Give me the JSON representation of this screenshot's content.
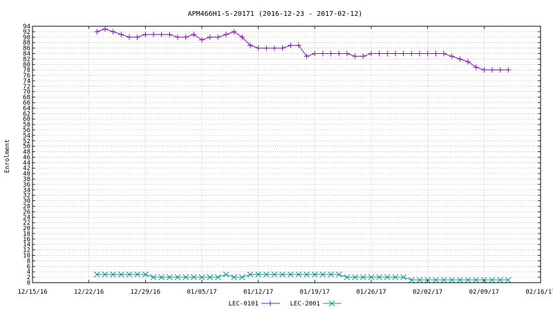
{
  "chart_data": {
    "type": "line",
    "title": "APM466H1-S-20171 (2016-12-23 - 2017-02-12)",
    "xlabel": "",
    "ylabel": "Enrolment",
    "ylim": [
      0,
      94
    ],
    "yticks_step": 2,
    "x_tick_labels": [
      "12/15/16",
      "12/22/16",
      "12/29/16",
      "01/05/17",
      "01/12/17",
      "01/19/17",
      "01/26/17",
      "02/02/17",
      "02/09/17",
      "02/16/17"
    ],
    "x_start": "2016-12-15",
    "x_end": "2017-02-16",
    "x_tick_every_days": 7,
    "grid": true,
    "legend_position": "bottom-center",
    "series": [
      {
        "name": "LEC-0101",
        "color": "#9400d3",
        "marker": "+",
        "points": [
          [
            "2016-12-23",
            92
          ],
          [
            "2016-12-24",
            93
          ],
          [
            "2016-12-25",
            92
          ],
          [
            "2016-12-26",
            91
          ],
          [
            "2016-12-27",
            90
          ],
          [
            "2016-12-28",
            90
          ],
          [
            "2016-12-29",
            91
          ],
          [
            "2016-12-30",
            91
          ],
          [
            "2016-12-31",
            91
          ],
          [
            "2017-01-01",
            91
          ],
          [
            "2017-01-02",
            90
          ],
          [
            "2017-01-03",
            90
          ],
          [
            "2017-01-04",
            91
          ],
          [
            "2017-01-05",
            89
          ],
          [
            "2017-01-06",
            90
          ],
          [
            "2017-01-07",
            90
          ],
          [
            "2017-01-08",
            91
          ],
          [
            "2017-01-09",
            92
          ],
          [
            "2017-01-10",
            90
          ],
          [
            "2017-01-11",
            87
          ],
          [
            "2017-01-12",
            86
          ],
          [
            "2017-01-13",
            86
          ],
          [
            "2017-01-14",
            86
          ],
          [
            "2017-01-15",
            86
          ],
          [
            "2017-01-16",
            87
          ],
          [
            "2017-01-17",
            87
          ],
          [
            "2017-01-18",
            83
          ],
          [
            "2017-01-19",
            84
          ],
          [
            "2017-01-20",
            84
          ],
          [
            "2017-01-21",
            84
          ],
          [
            "2017-01-22",
            84
          ],
          [
            "2017-01-23",
            84
          ],
          [
            "2017-01-24",
            83
          ],
          [
            "2017-01-25",
            83
          ],
          [
            "2017-01-26",
            84
          ],
          [
            "2017-01-27",
            84
          ],
          [
            "2017-01-28",
            84
          ],
          [
            "2017-01-29",
            84
          ],
          [
            "2017-01-30",
            84
          ],
          [
            "2017-01-31",
            84
          ],
          [
            "2017-02-01",
            84
          ],
          [
            "2017-02-02",
            84
          ],
          [
            "2017-02-03",
            84
          ],
          [
            "2017-02-04",
            84
          ],
          [
            "2017-02-05",
            83
          ],
          [
            "2017-02-06",
            82
          ],
          [
            "2017-02-07",
            81
          ],
          [
            "2017-02-08",
            79
          ],
          [
            "2017-02-09",
            78
          ],
          [
            "2017-02-10",
            78
          ],
          [
            "2017-02-11",
            78
          ],
          [
            "2017-02-12",
            78
          ]
        ]
      },
      {
        "name": "LEC-2001",
        "color": "#009b8c",
        "marker": "x",
        "points": [
          [
            "2016-12-23",
            3
          ],
          [
            "2016-12-24",
            3
          ],
          [
            "2016-12-25",
            3
          ],
          [
            "2016-12-26",
            3
          ],
          [
            "2016-12-27",
            3
          ],
          [
            "2016-12-28",
            3
          ],
          [
            "2016-12-29",
            3
          ],
          [
            "2016-12-30",
            2
          ],
          [
            "2016-12-31",
            2
          ],
          [
            "2017-01-01",
            2
          ],
          [
            "2017-01-02",
            2
          ],
          [
            "2017-01-03",
            2
          ],
          [
            "2017-01-04",
            2
          ],
          [
            "2017-01-05",
            2
          ],
          [
            "2017-01-06",
            2
          ],
          [
            "2017-01-07",
            2
          ],
          [
            "2017-01-08",
            3
          ],
          [
            "2017-01-09",
            2
          ],
          [
            "2017-01-10",
            2
          ],
          [
            "2017-01-11",
            3
          ],
          [
            "2017-01-12",
            3
          ],
          [
            "2017-01-13",
            3
          ],
          [
            "2017-01-14",
            3
          ],
          [
            "2017-01-15",
            3
          ],
          [
            "2017-01-16",
            3
          ],
          [
            "2017-01-17",
            3
          ],
          [
            "2017-01-18",
            3
          ],
          [
            "2017-01-19",
            3
          ],
          [
            "2017-01-20",
            3
          ],
          [
            "2017-01-21",
            3
          ],
          [
            "2017-01-22",
            3
          ],
          [
            "2017-01-23",
            2
          ],
          [
            "2017-01-24",
            2
          ],
          [
            "2017-01-25",
            2
          ],
          [
            "2017-01-26",
            2
          ],
          [
            "2017-01-27",
            2
          ],
          [
            "2017-01-28",
            2
          ],
          [
            "2017-01-29",
            2
          ],
          [
            "2017-01-30",
            2
          ],
          [
            "2017-01-31",
            1
          ],
          [
            "2017-02-01",
            1
          ],
          [
            "2017-02-02",
            1
          ],
          [
            "2017-02-03",
            1
          ],
          [
            "2017-02-04",
            1
          ],
          [
            "2017-02-05",
            1
          ],
          [
            "2017-02-06",
            1
          ],
          [
            "2017-02-07",
            1
          ],
          [
            "2017-02-08",
            1
          ],
          [
            "2017-02-09",
            1
          ],
          [
            "2017-02-10",
            1
          ],
          [
            "2017-02-11",
            1
          ],
          [
            "2017-02-12",
            1
          ]
        ]
      }
    ]
  }
}
